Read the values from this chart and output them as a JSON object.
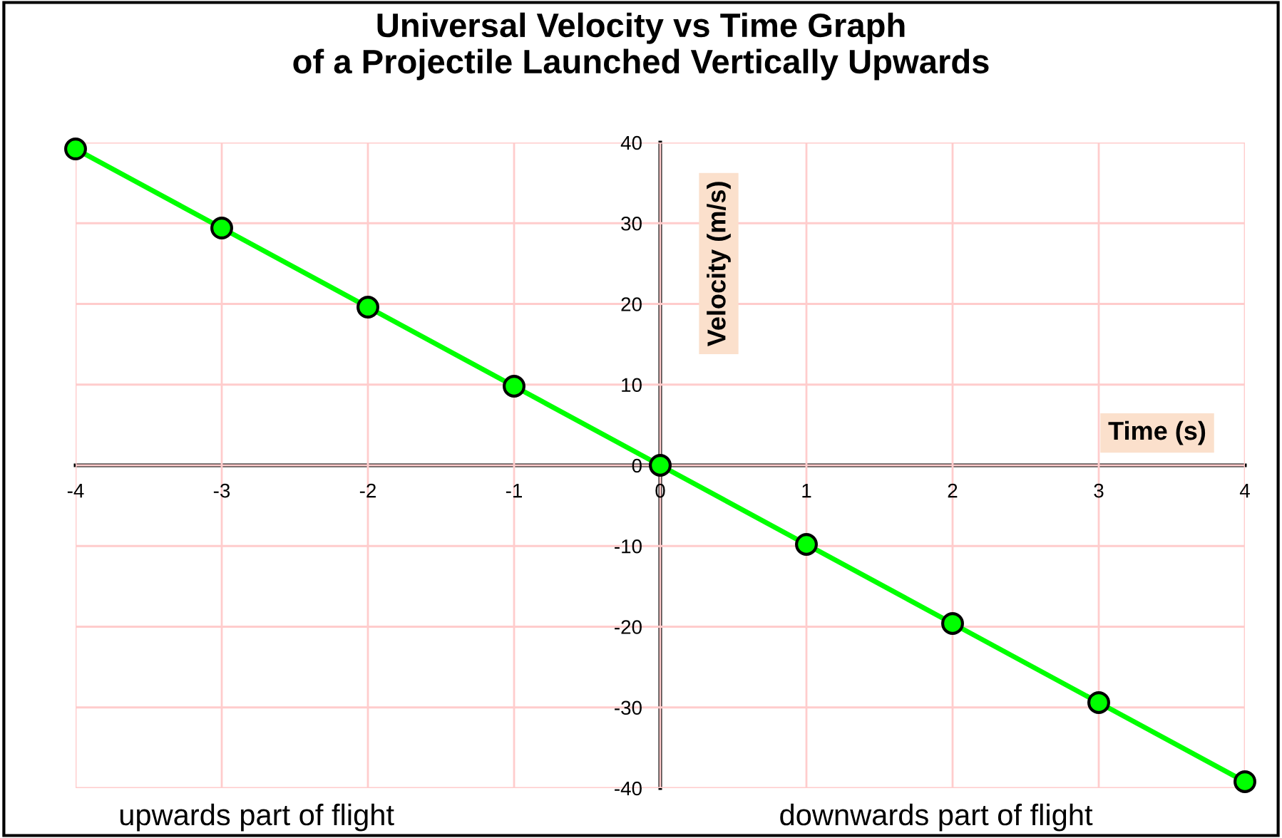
{
  "chart_data": {
    "type": "line",
    "title": "Universal Velocity vs Time Graph\nof a Projectile Launched Vertically Upwards",
    "xlabel": "Time (s)",
    "ylabel": "Velocity (m/s)",
    "x": [
      -4,
      -3,
      -2,
      -1,
      0,
      1,
      2,
      3,
      4
    ],
    "series": [
      {
        "color": "#00ff00",
        "values": [
          39.2,
          29.4,
          19.6,
          9.8,
          0,
          -9.8,
          -19.6,
          -29.4,
          -39.2
        ]
      }
    ],
    "xlim": [
      -4,
      4
    ],
    "ylim": [
      -40,
      40
    ],
    "xticks": [
      -4,
      -3,
      -2,
      -1,
      0,
      1,
      2,
      3,
      4
    ],
    "yticks": [
      -40,
      -30,
      -20,
      -10,
      0,
      10,
      20,
      30,
      40
    ],
    "grid": true,
    "marker": "circle",
    "line_style": "solid",
    "legend": false,
    "annotations": [
      "upwards part of flight",
      "downwards part of flight"
    ]
  }
}
